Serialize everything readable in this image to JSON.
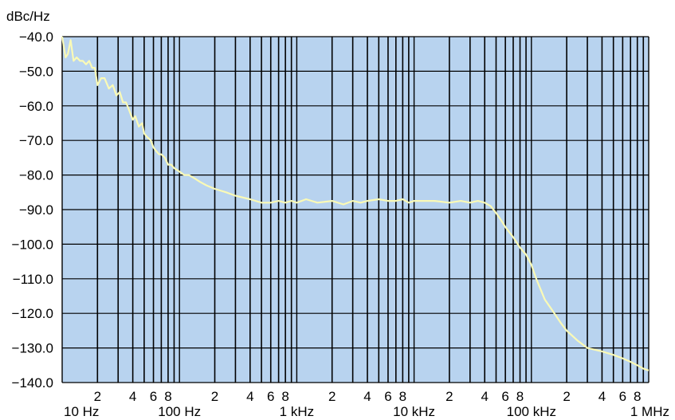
{
  "chart_data": {
    "type": "line",
    "ylabel": "dBc/Hz",
    "x_scale": "log",
    "xlim": [
      10,
      1000000
    ],
    "ylim": [
      -140,
      -40
    ],
    "y_ticks": [
      {
        "value": -40,
        "label": "−40.0"
      },
      {
        "value": -50,
        "label": "−50.0"
      },
      {
        "value": -60,
        "label": "−60.0"
      },
      {
        "value": -70,
        "label": "−70.0"
      },
      {
        "value": -80,
        "label": "−80.0"
      },
      {
        "value": -90,
        "label": "−90.0"
      },
      {
        "value": -100,
        "label": "−100.0"
      },
      {
        "value": -110,
        "label": "−110.0"
      },
      {
        "value": -120,
        "label": "−120.0"
      },
      {
        "value": -130,
        "label": "−130.0"
      },
      {
        "value": -140,
        "label": "−140.0"
      }
    ],
    "x_decade_labels": [
      {
        "value": 10,
        "label": "10 Hz"
      },
      {
        "value": 100,
        "label": "100 Hz"
      },
      {
        "value": 1000,
        "label": "1 kHz"
      },
      {
        "value": 10000,
        "label": "10 kHz"
      },
      {
        "value": 100000,
        "label": "100 kHz"
      },
      {
        "value": 1000000,
        "label": "1 MHz"
      }
    ],
    "x_minor_labels": [
      "2",
      "4",
      "6",
      "8"
    ],
    "grid": true,
    "colors": {
      "plot_bg": "#b8d3ef",
      "grid": "#000000",
      "trace": "#fafab6"
    },
    "series": [
      {
        "x": [
          10,
          10.7,
          11.2,
          11.8,
          12.5,
          13.3,
          14.2,
          15,
          16,
          17,
          18,
          19,
          20,
          21.5,
          23,
          25,
          27,
          29,
          31,
          33,
          35,
          37,
          40,
          42,
          45,
          48,
          50,
          53,
          57,
          60,
          63,
          67,
          70,
          75,
          80,
          85,
          90,
          100,
          110,
          120,
          135,
          150,
          170,
          200,
          250,
          300,
          400,
          500,
          600,
          700,
          800,
          900,
          1000,
          1200,
          1500,
          2000,
          2500,
          3000,
          3500,
          4000,
          5000,
          6000,
          7000,
          8000,
          9000,
          10000,
          12000,
          15000,
          20000,
          25000,
          30000,
          35000,
          40000,
          45000,
          50000,
          55000,
          60000,
          70000,
          80000,
          90000,
          100000,
          110000,
          130000,
          150000,
          180000,
          200000,
          250000,
          300000,
          400000,
          500000,
          600000,
          700000,
          800000,
          900000,
          1000000
        ],
        "y": [
          -40,
          -46,
          -45,
          -41,
          -47,
          -46,
          -47,
          -47,
          -48,
          -47,
          -49,
          -49,
          -54,
          -52,
          -52,
          -55,
          -54,
          -57,
          -56,
          -59,
          -59,
          -61,
          -64,
          -63,
          -66,
          -65,
          -68,
          -69,
          -70,
          -72,
          -73,
          -74,
          -74,
          -75,
          -77,
          -77,
          -78,
          -79,
          -80,
          -80,
          -81,
          -82,
          -83,
          -84,
          -85,
          -86,
          -87,
          -88,
          -88,
          -87.5,
          -88,
          -87.5,
          -88,
          -87,
          -88,
          -87.5,
          -88.5,
          -87.5,
          -88,
          -87.5,
          -87,
          -87.5,
          -87.5,
          -87,
          -88,
          -87.5,
          -87.5,
          -87.5,
          -88,
          -87.5,
          -88,
          -87.5,
          -88,
          -89,
          -91,
          -93,
          -95,
          -98,
          -101,
          -103,
          -106,
          -110,
          -116,
          -119,
          -123,
          -125,
          -128,
          -130,
          -131,
          -132,
          -133,
          -134,
          -135,
          -136,
          -136.5
        ]
      }
    ]
  }
}
